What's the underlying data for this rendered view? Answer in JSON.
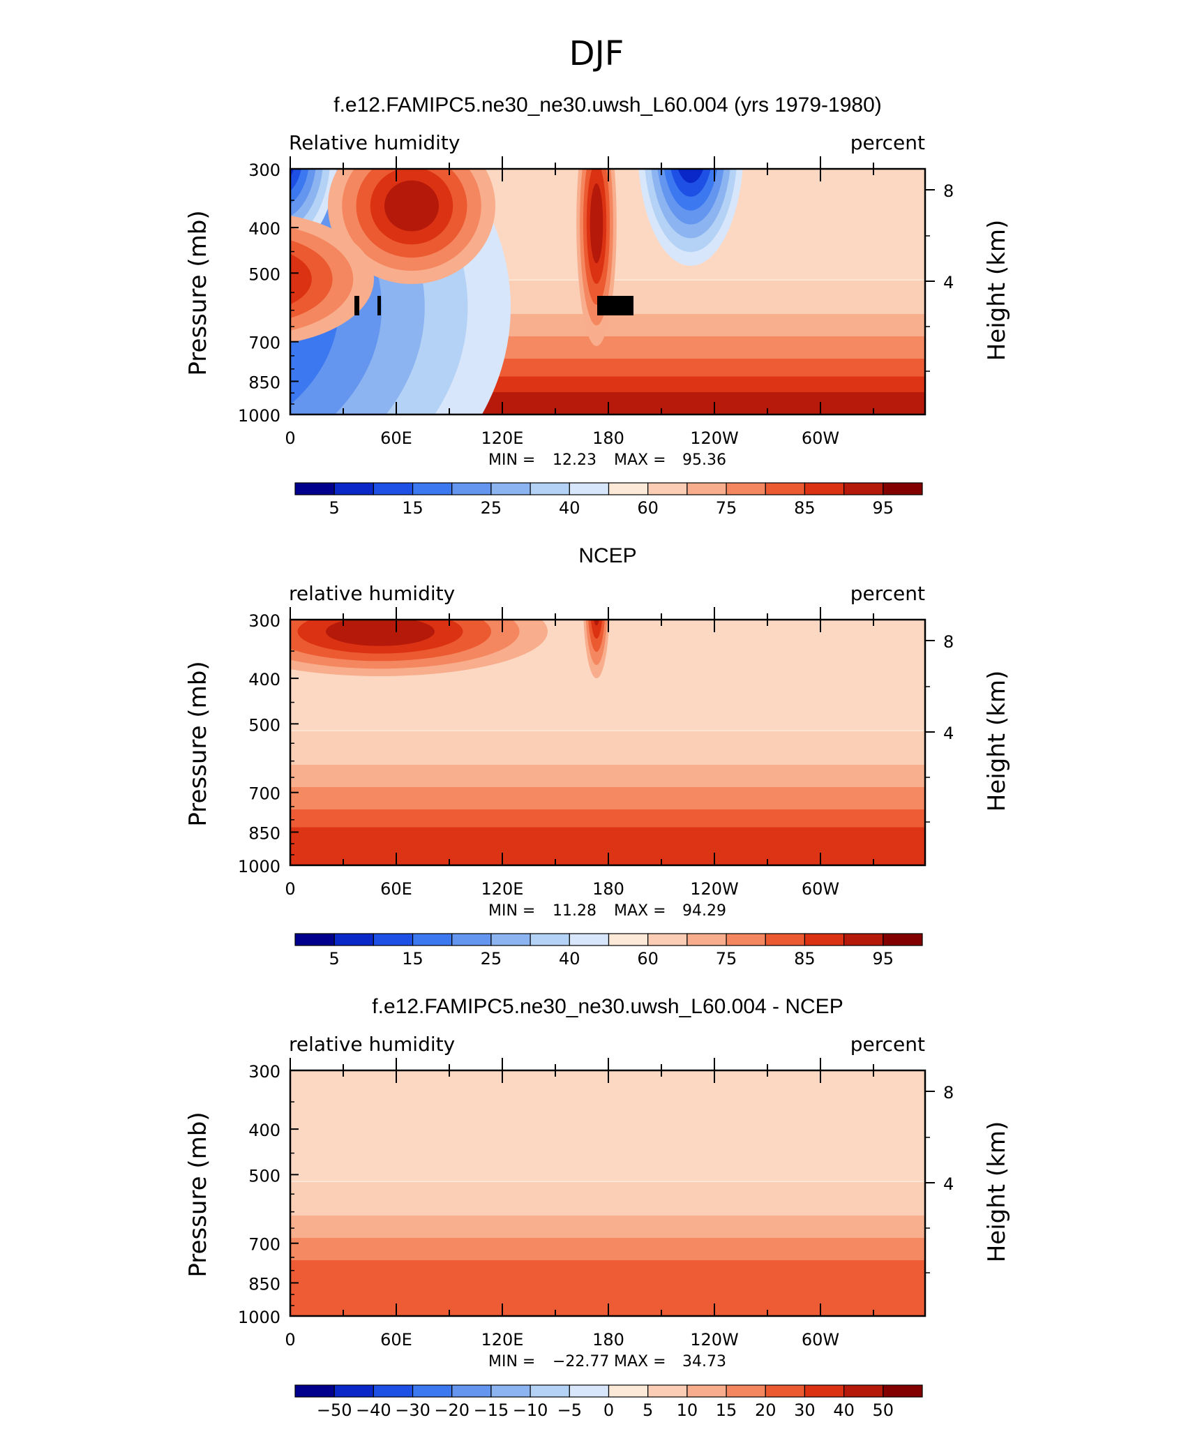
{
  "main_title": "DJF",
  "chart_data": [
    {
      "type": "heatmap",
      "title": "f.e12.FAMIPC5.ne30_ne30.uwsh_L60.004 (yrs 1979-1980)",
      "left_label": "Relative humidity",
      "right_label": "percent",
      "ylabel": "Pressure (mb)",
      "ylabel2": "Height (km)",
      "yticks": [
        "300",
        "400",
        "500",
        "700",
        "850",
        "1000"
      ],
      "yticks2": [
        "8",
        "4"
      ],
      "xticks": [
        "0",
        "60E",
        "120E",
        "180",
        "120W",
        "60W"
      ],
      "stats": {
        "min_label": "MIN =",
        "min": "12.23",
        "max_label": "MAX =",
        "max": "95.36"
      },
      "colorbar_labels": [
        "5",
        "15",
        "25",
        "40",
        "60",
        "75",
        "85",
        "95"
      ],
      "colorbar_colors": [
        "#00008c",
        "#0a28c8",
        "#1e50e6",
        "#3c78f0",
        "#6496f0",
        "#8cb4f0",
        "#b4d2f5",
        "#d7e6fa",
        "#fde9d7",
        "#fbcdb4",
        "#f8ad8c",
        "#f4875f",
        "#ec5a32",
        "#dc3214",
        "#b4190a",
        "#820000"
      ],
      "patterns": {
        "blue_max": [
          [
            200,
            440,
            280,
            210
          ],
          [
            398,
            222,
            45,
            75
          ],
          [
            990,
            210,
            40,
            90
          ]
        ],
        "red_max": [
          [
            590,
            295,
            75,
            70
          ],
          [
            375,
            340,
            20,
            90
          ],
          [
            855,
            320,
            18,
            110
          ],
          [
            360,
            400,
            110,
            60
          ]
        ],
        "orange_band_y": 425,
        "orange_band_level": 14,
        "blocks": [
          [
            336,
            424,
            56,
            28
          ],
          [
            372,
            396,
            18,
            28
          ],
          [
            508,
            424,
            7,
            28
          ],
          [
            541,
            424,
            5,
            28
          ],
          [
            856,
            424,
            52,
            28
          ]
        ]
      }
    },
    {
      "type": "heatmap",
      "title": "NCEP",
      "left_label": "relative humidity",
      "right_label": "percent",
      "ylabel": "Pressure (mb)",
      "ylabel2": "Height (km)",
      "yticks": [
        "300",
        "400",
        "500",
        "700",
        "850",
        "1000"
      ],
      "yticks2": [
        "8",
        "4"
      ],
      "xticks": [
        "0",
        "60E",
        "120E",
        "180",
        "120W",
        "60W"
      ],
      "stats": {
        "min_label": "MIN =",
        "min": "11.28",
        "max_label": "MAX =",
        "max": "94.29"
      },
      "colorbar_labels": [
        "5",
        "15",
        "25",
        "40",
        "60",
        "75",
        "85",
        "95"
      ],
      "colorbar_colors": [
        "#00008c",
        "#0a28c8",
        "#1e50e6",
        "#3c78f0",
        "#6496f0",
        "#8cb4f0",
        "#b4d2f5",
        "#d7e6fa",
        "#fde9d7",
        "#fbcdb4",
        "#f8ad8c",
        "#f4875f",
        "#ec5a32",
        "#dc3214",
        "#b4190a",
        "#820000"
      ],
      "patterns": {
        "blue_max": [
          [
            820,
            715,
            60,
            75
          ],
          [
            380,
            710,
            30,
            40
          ]
        ],
        "red_max": [
          [
            855,
            860,
            12,
            70
          ],
          [
            375,
            830,
            15,
            60
          ],
          [
            545,
            905,
            150,
            40
          ]
        ],
        "orange_band_y": 915,
        "orange_band_level": 12,
        "blocks": []
      }
    },
    {
      "type": "heatmap",
      "title": "f.e12.FAMIPC5.ne30_ne30.uwsh_L60.004 - NCEP",
      "left_label": "relative humidity",
      "right_label": "percent",
      "ylabel": "Pressure (mb)",
      "ylabel2": "Height (km)",
      "yticks": [
        "300",
        "400",
        "500",
        "700",
        "850",
        "1000"
      ],
      "yticks2": [
        "8",
        "4"
      ],
      "xticks": [
        "0",
        "60E",
        "120E",
        "180",
        "120W",
        "60W"
      ],
      "stats": {
        "min_label": "MIN =",
        "min": "−22.77",
        "max_label": "MAX =",
        "max": "34.73"
      },
      "colorbar_labels": [
        "−50",
        "−40",
        "−30",
        "−20",
        "−15",
        "−10",
        "−5",
        "0",
        "5",
        "10",
        "15",
        "20",
        "30",
        "40",
        "50"
      ],
      "colorbar_colors": [
        "#00008c",
        "#0a28c8",
        "#1e50e6",
        "#3c78f0",
        "#6496f0",
        "#8cb4f0",
        "#b4d2f5",
        "#d7e6fa",
        "#fde9d7",
        "#fbcdb4",
        "#f8ad8c",
        "#f4875f",
        "#ec5a32",
        "#dc3214",
        "#b4190a",
        "#820000"
      ],
      "patterns": {
        "blue_max": [
          [
            720,
            1220,
            45,
            110
          ],
          [
            405,
            1190,
            15,
            60
          ]
        ],
        "red_max": [
          [
            590,
            1250,
            60,
            70
          ],
          [
            860,
            1230,
            30,
            70
          ],
          [
            520,
            1210,
            40,
            60
          ]
        ],
        "orange_band_y": 1400,
        "orange_band_level": 11,
        "blocks": [
          [
            333,
            1403,
            65,
            28
          ],
          [
            371,
            1375,
            20,
            28
          ],
          [
            506,
            1403,
            10,
            28
          ],
          [
            538,
            1403,
            11,
            28
          ],
          [
            858,
            1403,
            54,
            28
          ]
        ]
      }
    }
  ]
}
